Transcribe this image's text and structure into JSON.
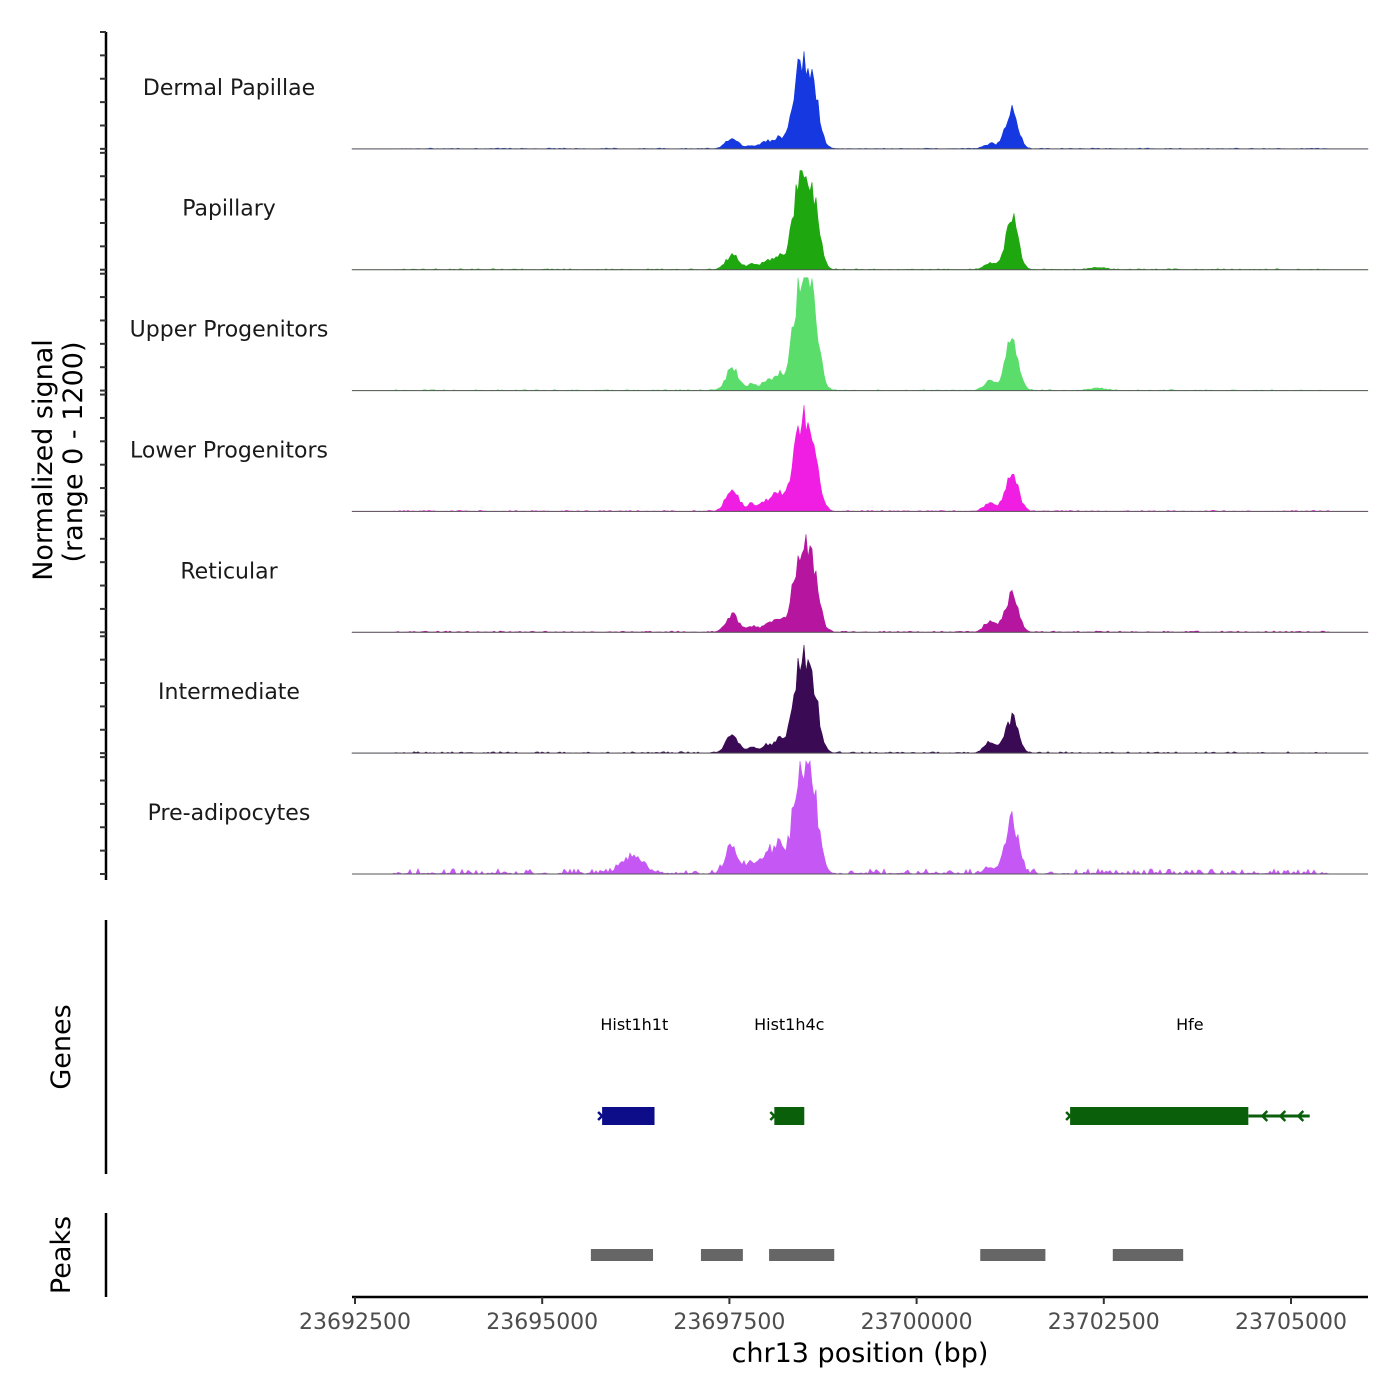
{
  "chart_data": {
    "type": "area",
    "title": "",
    "xlabel": "chr13 position (bp)",
    "ylabel": "Normalized signal\n(range 0 - 1200)",
    "ylabel_lines": [
      "Normalized signal",
      "(range 0 - 1200)"
    ],
    "ylim": [
      0,
      1200
    ],
    "xlim": [
      23692500,
      23706000
    ],
    "x_ticks": [
      23692500,
      23695000,
      23697500,
      23700000,
      23702500,
      23705000
    ],
    "x_tick_labels": [
      "23692500",
      "23695000",
      "23697500",
      "23700000",
      "23702500",
      "23705000"
    ],
    "track_panels": [
      "Genes",
      "Peaks"
    ],
    "series": [
      {
        "name": "Dermal Papillae",
        "color": "#1538E0",
        "peaks": [
          [
            23697540,
            120,
            260
          ],
          [
            23697800,
            35,
            180
          ],
          [
            23697990,
            80,
            210
          ],
          [
            23698150,
            110,
            200
          ],
          [
            23698450,
            880,
            320
          ],
          [
            23698620,
            520,
            260
          ],
          [
            23700980,
            55,
            240
          ],
          [
            23701270,
            420,
            260
          ]
        ],
        "background": 8
      },
      {
        "name": "Papillary",
        "color": "#1FA70F",
        "peaks": [
          [
            23697540,
            160,
            260
          ],
          [
            23697800,
            60,
            180
          ],
          [
            23697990,
            90,
            210
          ],
          [
            23698150,
            140,
            200
          ],
          [
            23698450,
            980,
            320
          ],
          [
            23698620,
            620,
            260
          ],
          [
            23700980,
            70,
            240
          ],
          [
            23701270,
            580,
            260
          ],
          [
            23702420,
            25,
            300
          ]
        ],
        "background": 10
      },
      {
        "name": "Upper Progenitors",
        "color": "#5BDD6C",
        "peaks": [
          [
            23697540,
            250,
            260
          ],
          [
            23697800,
            70,
            180
          ],
          [
            23697990,
            100,
            210
          ],
          [
            23698150,
            160,
            200
          ],
          [
            23698450,
            1130,
            320
          ],
          [
            23698620,
            700,
            260
          ],
          [
            23700980,
            110,
            240
          ],
          [
            23701270,
            560,
            260
          ],
          [
            23702420,
            25,
            300
          ]
        ],
        "background": 10
      },
      {
        "name": "Lower Progenitors",
        "color": "#F01DE3",
        "peaks": [
          [
            23697540,
            250,
            260
          ],
          [
            23697800,
            80,
            180
          ],
          [
            23697990,
            120,
            210
          ],
          [
            23698150,
            200,
            200
          ],
          [
            23698450,
            920,
            320
          ],
          [
            23698620,
            560,
            260
          ],
          [
            23700980,
            90,
            240
          ],
          [
            23701270,
            440,
            260
          ]
        ],
        "background": 12
      },
      {
        "name": "Reticular",
        "color": "#B5159F",
        "peaks": [
          [
            23697540,
            190,
            260
          ],
          [
            23697800,
            60,
            180
          ],
          [
            23697990,
            90,
            210
          ],
          [
            23698150,
            140,
            200
          ],
          [
            23698450,
            850,
            320
          ],
          [
            23698620,
            520,
            260
          ],
          [
            23700980,
            120,
            240
          ],
          [
            23701270,
            420,
            260
          ]
        ],
        "background": 14
      },
      {
        "name": "Intermediate",
        "color": "#3A0A54",
        "peaks": [
          [
            23697540,
            190,
            260
          ],
          [
            23697800,
            60,
            180
          ],
          [
            23697990,
            80,
            210
          ],
          [
            23698150,
            140,
            200
          ],
          [
            23698450,
            920,
            320
          ],
          [
            23698620,
            560,
            260
          ],
          [
            23700980,
            120,
            240
          ],
          [
            23701270,
            380,
            260
          ]
        ],
        "background": 16
      },
      {
        "name": "Pre-adipocytes",
        "color": "#C558F5",
        "peaks": [
          [
            23696200,
            180,
            450
          ],
          [
            23697540,
            300,
            260
          ],
          [
            23697800,
            140,
            180
          ],
          [
            23697990,
            220,
            210
          ],
          [
            23698150,
            320,
            200
          ],
          [
            23698450,
            1150,
            320
          ],
          [
            23698620,
            700,
            260
          ],
          [
            23700980,
            60,
            240
          ],
          [
            23701270,
            600,
            260
          ]
        ],
        "background": 55
      }
    ],
    "genes": [
      {
        "name": "Hist1h1t",
        "start": 23695800,
        "end": 23696500,
        "strand": "+",
        "color": "#0D0D8A",
        "label_x": 23696230
      },
      {
        "name": "Hist1h4c",
        "start": 23698100,
        "end": 23698500,
        "strand": "-",
        "color": "#0A5F0A",
        "label_x": 23698300
      },
      {
        "name": "Hfe",
        "start": 23702050,
        "end": 23704430,
        "strand": "-",
        "color": "#0A5F0A",
        "intron_end": 23705250,
        "label_x": 23703650
      }
    ],
    "peaks": [
      [
        23695650,
        23696480
      ],
      [
        23697120,
        23697680
      ],
      [
        23698030,
        23698900
      ],
      [
        23700850,
        23701720
      ],
      [
        23702620,
        23703560
      ]
    ],
    "peak_color": "#666666"
  }
}
